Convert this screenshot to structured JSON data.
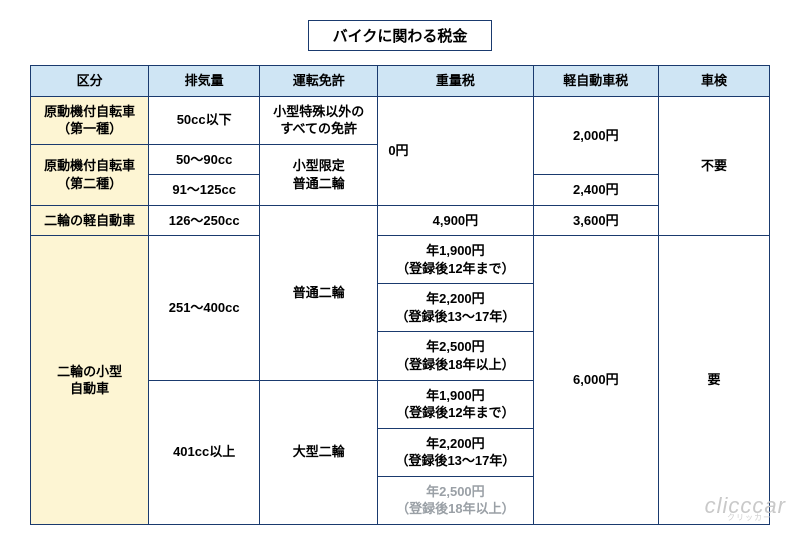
{
  "title": "バイクに関わる税金",
  "columns": [
    "区分",
    "排気量",
    "運転免許",
    "重量税",
    "軽自動車税",
    "車検"
  ],
  "rows": {
    "r1_cat": "原動機付自転車\n（第一種）",
    "r1_cc": "50cc以下",
    "r1_lic": "小型特殊以外の\nすべての免許",
    "r12_weight": "0円",
    "r1_tax": "2,000円",
    "r1234_insp": "不要",
    "r2_cat": "原動機付自転車\n（第二種）",
    "r2a_cc": "50～90cc",
    "r2_lic": "小型限定\n普通二輪",
    "r2b_cc": "91～125cc",
    "r2_tax": "2,400円",
    "r3_cat": "二輪の軽自動車",
    "r3_cc": "126～250cc",
    "r34big_lic": "普通二輪",
    "r3_weight": "4,900円",
    "r3_tax": "3,600円",
    "r4_cat": "二輪の小型\n自動車",
    "r4a_cc": "251～400cc",
    "w1": "年1,900円\n（登録後12年まで）",
    "w2": "年2,200円\n（登録後13～17年）",
    "w3": "年2,500円\n（登録後18年以上）",
    "r4_tax": "6,000円",
    "r4_insp": "要",
    "r4b_cc": "401cc以上",
    "r4b_lic": "大型二輪",
    "w4": "年1,900円\n（登録後12年まで）",
    "w5": "年2,200円\n（登録後13～17年）",
    "w6": "年2,500円\n（登録後18年以上）"
  },
  "watermark": "clicccar",
  "watermark_sub": "クリッカー",
  "colors": {
    "border": "#1a3a6e",
    "header_bg": "#cfe5f4",
    "rowhead_bg": "#fdf5d3"
  }
}
